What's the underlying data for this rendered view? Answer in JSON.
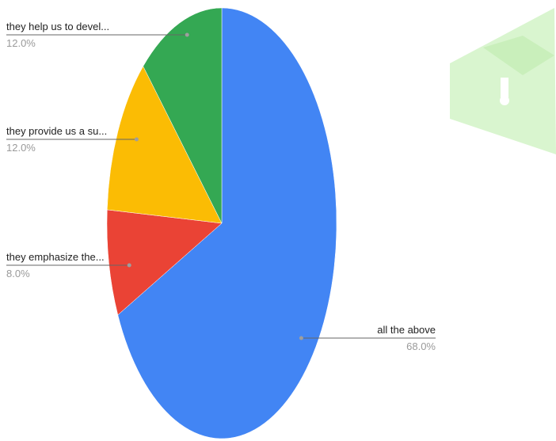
{
  "chart_data": {
    "type": "pie",
    "title": "",
    "start_angle_deg": 0,
    "direction": "clockwise",
    "slices": [
      {
        "label": "all the above",
        "value": 68.0,
        "display": "68.0%",
        "color": "#4285f4",
        "side": "right"
      },
      {
        "label": "they emphasize the...",
        "value": 8.0,
        "display": "8.0%",
        "color": "#ea4335",
        "side": "left"
      },
      {
        "label": "they provide us a su...",
        "value": 12.0,
        "display": "12.0%",
        "color": "#fbbc04",
        "side": "left"
      },
      {
        "label": "they help us to devel...",
        "value": 12.0,
        "display": "12.0%",
        "color": "#34a853",
        "side": "left"
      }
    ]
  },
  "watermark": {
    "color": "#d9f5cf",
    "icon": "graduation-cap-logo"
  }
}
